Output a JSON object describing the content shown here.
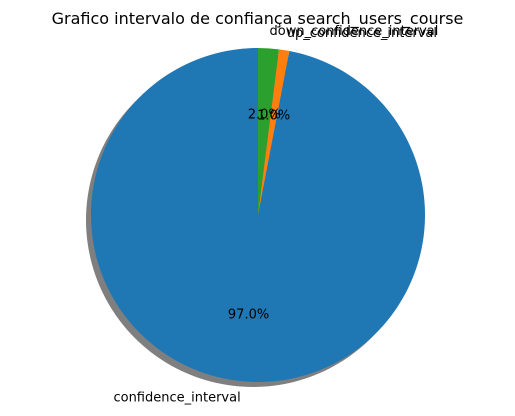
{
  "chart_data": {
    "type": "pie",
    "title": "Grafico intervalo de confiança search_users_course",
    "slices": [
      {
        "label": "confidence_interval",
        "value": 97.0,
        "pct_label": "97.0%",
        "color": "#1f77b4"
      },
      {
        "label": "up_confidence_interval",
        "value": 1.0,
        "pct_label": "1.0%",
        "color": "#ff7f0e"
      },
      {
        "label": "down_confidence_interval",
        "value": 2.0,
        "pct_label": "2.0%",
        "color": "#2ca02c"
      }
    ],
    "start_angle_deg": 90,
    "direction": "counterclockwise",
    "shadow": true
  }
}
